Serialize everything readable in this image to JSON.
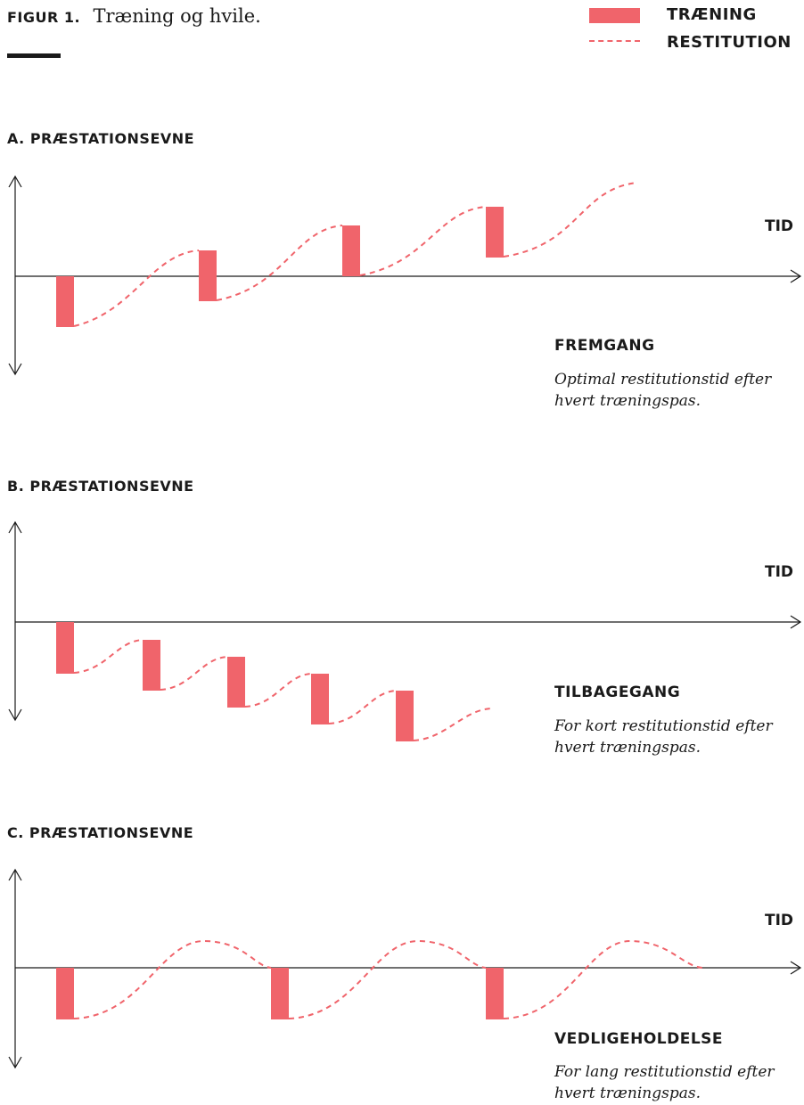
{
  "figure": {
    "label": "FIGUR 1.",
    "caption": "Træning og hvile."
  },
  "legend": {
    "training": "TRÆNING",
    "recovery": "RESTITUTION"
  },
  "colors": {
    "accent": "#f0646b",
    "axis": "#1a1a1a"
  },
  "panels": [
    {
      "title": "A. PRÆSTATIONSEVNE",
      "time_label": "TID",
      "outcome": "FREMGANG",
      "description": "Optimal restitutionstid efter hvert træningspas."
    },
    {
      "title": "B. PRÆSTATIONSEVNE",
      "time_label": "TID",
      "outcome": "TILBAGEGANG",
      "description": "For kort restitutionstid efter hvert træningspas."
    },
    {
      "title": "C. PRÆSTATIONSEVNE",
      "time_label": "TID",
      "outcome": "VEDLIGEHOLDELSE",
      "description": "For lang restitutionstid efter hvert træningspas."
    }
  ]
}
